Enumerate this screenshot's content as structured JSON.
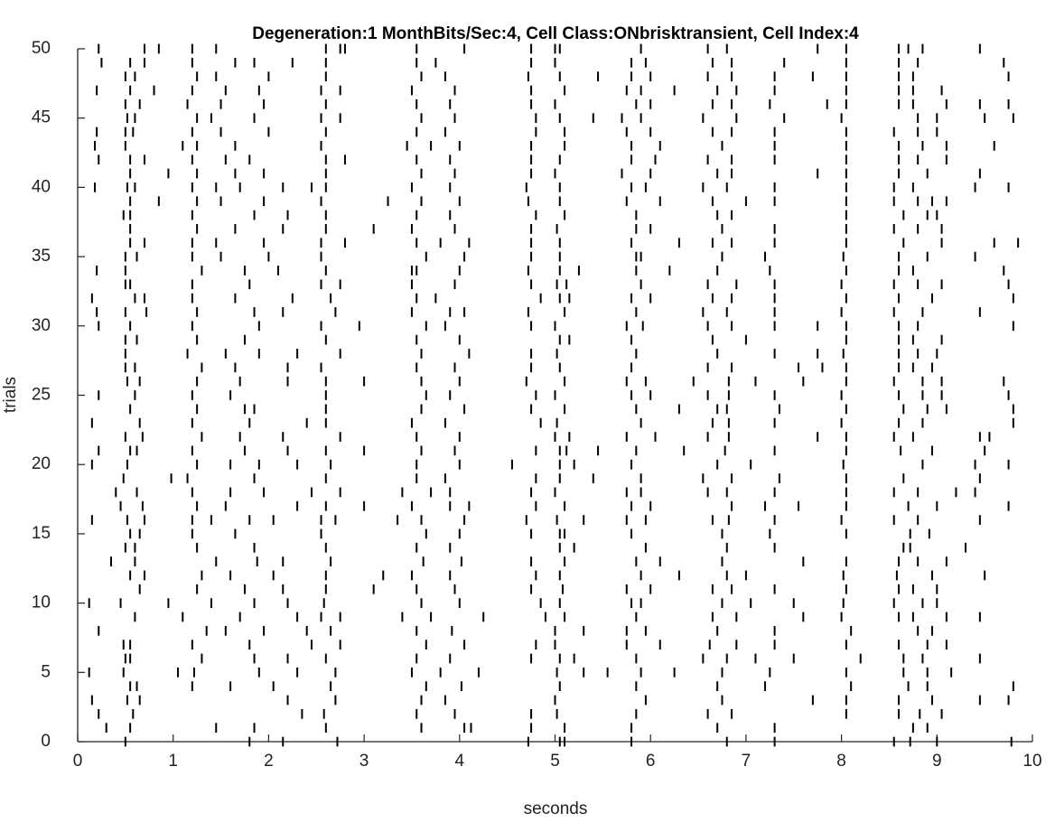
{
  "chart_data": {
    "type": "raster",
    "title": "Degeneration:1 MonthBits/Sec:4, Cell Class:ONbrisktransient, Cell Index:4",
    "xlabel": "seconds",
    "ylabel": "trials",
    "xlim": [
      0,
      10
    ],
    "ylim": [
      0,
      50
    ],
    "xticks": [
      0,
      1,
      2,
      3,
      4,
      5,
      6,
      7,
      8,
      9,
      10
    ],
    "yticks": [
      0,
      5,
      10,
      15,
      20,
      25,
      30,
      35,
      40,
      45,
      50
    ],
    "color": "#000000",
    "trials": [
      0,
      1,
      2,
      3,
      4,
      5,
      6,
      7,
      8,
      9,
      10,
      11,
      12,
      13,
      14,
      15,
      16,
      17,
      18,
      19,
      20,
      21,
      22,
      23,
      24,
      25,
      26,
      27,
      28,
      29,
      30,
      31,
      32,
      33,
      34,
      35,
      36,
      37,
      38,
      39,
      40,
      41,
      42,
      43,
      44,
      45,
      46,
      47,
      48,
      49,
      50
    ],
    "spikes": [
      [
        0.5,
        1.8,
        2.15,
        2.72,
        4.72,
        5.05,
        5.1,
        5.8,
        6.8,
        7.3,
        8.55,
        8.72,
        9.0,
        9.78
      ],
      [
        0.3,
        0.55,
        1.45,
        1.85,
        2.6,
        3.6,
        4.05,
        4.12,
        4.75,
        5.1,
        5.8,
        6.7,
        7.3,
        8.75,
        8.9
      ],
      [
        0.22,
        0.58,
        2.35,
        2.58,
        3.55,
        3.95,
        4.75,
        5.02,
        5.85,
        6.6,
        6.85,
        8.05,
        8.6,
        8.82,
        9.05
      ],
      [
        0.15,
        0.52,
        0.65,
        2.2,
        2.7,
        3.6,
        3.85,
        5.0,
        5.95,
        6.75,
        7.7,
        8.05,
        8.6,
        8.95,
        9.45,
        9.75
      ],
      [
        0.55,
        0.62,
        1.2,
        1.6,
        2.05,
        2.65,
        3.65,
        4.02,
        5.05,
        5.85,
        6.7,
        7.2,
        8.1,
        8.7,
        8.9,
        9.8
      ],
      [
        0.12,
        0.48,
        1.05,
        1.22,
        1.9,
        2.3,
        2.7,
        3.5,
        3.8,
        4.2,
        5.02,
        5.3,
        5.55,
        5.9,
        6.25,
        6.75,
        7.25,
        8.05,
        8.65,
        8.9,
        9.15
      ],
      [
        0.5,
        0.55,
        1.3,
        1.85,
        2.2,
        2.6,
        3.55,
        3.9,
        4.75,
        5.05,
        5.2,
        5.85,
        6.55,
        6.8,
        7.1,
        7.5,
        8.2,
        8.65,
        8.85,
        9.45
      ],
      [
        0.48,
        0.55,
        1.2,
        1.8,
        2.45,
        2.75,
        3.65,
        4.05,
        4.8,
        5.0,
        5.75,
        6.1,
        6.62,
        6.9,
        7.3,
        8.05,
        8.6,
        8.9,
        9.1
      ],
      [
        0.22,
        1.35,
        1.55,
        1.95,
        2.4,
        2.65,
        3.55,
        3.92,
        5.0,
        5.3,
        5.75,
        5.95,
        6.7,
        7.3,
        8.1,
        8.8,
        8.95
      ],
      [
        0.6,
        1.1,
        1.7,
        2.3,
        2.55,
        2.75,
        3.4,
        3.7,
        4.25,
        4.9,
        5.1,
        5.85,
        6.65,
        6.9,
        7.6,
        8.0,
        8.6,
        8.75,
        9.1,
        9.45
      ],
      [
        0.12,
        0.45,
        0.95,
        1.4,
        1.85,
        2.2,
        2.58,
        3.6,
        4.0,
        4.85,
        5.05,
        5.8,
        5.9,
        6.75,
        7.05,
        7.5,
        8.02,
        8.55,
        8.85,
        9.0
      ],
      [
        0.65,
        1.25,
        1.75,
        2.15,
        2.6,
        3.1,
        3.55,
        3.95,
        4.75,
        5.08,
        5.75,
        6.0,
        6.65,
        6.85,
        7.3,
        8.05,
        8.6,
        8.75,
        9.0
      ],
      [
        0.55,
        0.7,
        1.3,
        1.6,
        2.05,
        2.6,
        3.2,
        3.5,
        3.9,
        4.8,
        5.05,
        5.9,
        6.3,
        6.8,
        7.0,
        8.02,
        8.58,
        8.95,
        9.5
      ],
      [
        0.35,
        0.6,
        1.45,
        1.88,
        2.15,
        2.65,
        3.62,
        4.02,
        4.75,
        5.1,
        5.85,
        6.1,
        6.75,
        7.6,
        8.05,
        8.6,
        8.8,
        9.1
      ],
      [
        0.5,
        0.6,
        1.25,
        1.85,
        2.6,
        3.55,
        3.9,
        5.05,
        5.2,
        5.95,
        6.8,
        7.3,
        8.65,
        8.72,
        9.3
      ],
      [
        0.55,
        0.65,
        1.2,
        1.65,
        2.55,
        3.65,
        4.0,
        4.75,
        5.05,
        5.1,
        5.8,
        6.75,
        7.25,
        8.05,
        8.72,
        8.92
      ],
      [
        0.15,
        0.52,
        0.7,
        1.2,
        1.4,
        1.8,
        2.05,
        2.55,
        2.7,
        3.35,
        3.6,
        4.05,
        4.7,
        5.02,
        5.3,
        5.75,
        5.95,
        6.65,
        6.82,
        7.3,
        8.0,
        8.55,
        8.8,
        9.45
      ],
      [
        0.45,
        0.68,
        1.25,
        1.55,
        2.3,
        2.6,
        3.0,
        3.5,
        3.9,
        4.1,
        4.8,
        5.1,
        5.8,
        6.0,
        6.85,
        7.2,
        7.55,
        8.05,
        8.7,
        9.0,
        9.75
      ],
      [
        0.4,
        0.62,
        1.2,
        1.6,
        1.95,
        2.45,
        2.75,
        3.4,
        3.7,
        3.9,
        4.75,
        5.0,
        5.75,
        5.9,
        6.6,
        6.8,
        7.3,
        8.05,
        8.55,
        8.8,
        9.2,
        9.4
      ],
      [
        0.48,
        0.98,
        1.15,
        1.85,
        2.6,
        3.55,
        3.85,
        4.8,
        5.05,
        5.4,
        5.9,
        6.55,
        6.85,
        7.35,
        8.05,
        8.65,
        9.45
      ],
      [
        0.15,
        0.52,
        1.25,
        1.6,
        1.9,
        2.3,
        2.65,
        3.55,
        4.0,
        4.55,
        5.05,
        5.2,
        5.8,
        6.7,
        7.05,
        8.02,
        8.85,
        9.4,
        9.75
      ],
      [
        0.22,
        0.55,
        0.62,
        1.2,
        1.75,
        2.2,
        2.6,
        3.0,
        3.6,
        3.95,
        4.8,
        5.05,
        5.12,
        5.45,
        5.85,
        6.35,
        6.78,
        7.3,
        8.05,
        8.62,
        8.95,
        9.5
      ],
      [
        0.5,
        0.68,
        1.3,
        1.7,
        2.15,
        2.75,
        3.55,
        4.0,
        5.0,
        5.15,
        5.75,
        6.05,
        6.6,
        6.82,
        7.75,
        8.05,
        8.55,
        8.75,
        9.45,
        9.55
      ],
      [
        0.15,
        0.65,
        1.2,
        1.8,
        2.4,
        2.6,
        3.5,
        3.85,
        4.85,
        5.02,
        5.9,
        6.65,
        6.82,
        7.3,
        8.0,
        8.6,
        8.85,
        9.8
      ],
      [
        0.55,
        1.25,
        1.75,
        1.85,
        2.6,
        3.6,
        4.05,
        4.75,
        5.1,
        5.85,
        6.3,
        6.7,
        6.8,
        7.35,
        8.05,
        8.65,
        8.9,
        9.1,
        9.8
      ],
      [
        0.22,
        0.6,
        1.2,
        1.6,
        2.6,
        3.65,
        3.9,
        4.8,
        5.0,
        5.8,
        6.0,
        6.6,
        6.82,
        7.3,
        8.0,
        8.6,
        8.85,
        9.05,
        9.75
      ],
      [
        0.52,
        0.65,
        1.25,
        1.7,
        2.2,
        2.6,
        3.0,
        3.6,
        4.0,
        4.7,
        5.1,
        5.75,
        5.95,
        6.45,
        6.82,
        7.1,
        7.6,
        8.05,
        8.55,
        8.85,
        9.05,
        9.7
      ],
      [
        0.5,
        0.6,
        1.3,
        1.65,
        2.2,
        2.55,
        3.55,
        3.95,
        4.75,
        5.05,
        5.8,
        6.6,
        6.85,
        7.55,
        7.8,
        8.05,
        8.6,
        8.75,
        8.95
      ],
      [
        0.5,
        1.15,
        1.55,
        1.9,
        2.3,
        2.75,
        3.6,
        4.1,
        4.75,
        5.02,
        5.85,
        6.7,
        7.3,
        7.75,
        8.02,
        8.6,
        8.8,
        9.0
      ],
      [
        0.5,
        0.62,
        1.25,
        1.75,
        2.6,
        3.55,
        4.0,
        5.05,
        5.15,
        5.8,
        6.65,
        7.0,
        8.05,
        8.6,
        8.75,
        9.05
      ],
      [
        0.22,
        0.55,
        1.2,
        1.9,
        2.55,
        2.95,
        3.65,
        3.85,
        4.75,
        5.0,
        5.75,
        5.92,
        6.6,
        6.85,
        7.3,
        7.75,
        8.05,
        8.6,
        8.8,
        9.8
      ],
      [
        0.2,
        0.5,
        0.72,
        1.25,
        1.85,
        2.15,
        2.7,
        3.5,
        3.9,
        4.05,
        4.72,
        5.1,
        5.85,
        6.55,
        6.8,
        7.3,
        8.0,
        8.55,
        8.85,
        9.45
      ],
      [
        0.15,
        0.6,
        0.7,
        1.2,
        1.65,
        2.25,
        2.65,
        3.55,
        3.75,
        4.85,
        5.05,
        5.15,
        5.8,
        6.0,
        6.65,
        6.85,
        7.3,
        8.05,
        8.6,
        8.95,
        9.8
      ],
      [
        0.5,
        0.55,
        1.2,
        1.8,
        2.55,
        2.75,
        3.5,
        3.95,
        4.75,
        5.02,
        5.12,
        5.9,
        6.6,
        6.9,
        7.3,
        8.0,
        8.55,
        8.8,
        9.05,
        9.75
      ],
      [
        0.2,
        0.5,
        1.3,
        1.75,
        2.1,
        2.6,
        3.5,
        3.55,
        4.0,
        4.72,
        5.05,
        5.25,
        5.85,
        6.2,
        6.7,
        7.25,
        8.05,
        8.6,
        8.75,
        9.7
      ],
      [
        0.5,
        0.62,
        1.2,
        1.5,
        2.0,
        2.55,
        3.65,
        4.05,
        4.75,
        5.05,
        5.85,
        5.9,
        6.75,
        7.2,
        8.02,
        8.6,
        8.9,
        9.4
      ],
      [
        0.55,
        0.7,
        1.2,
        1.45,
        1.95,
        2.55,
        2.8,
        3.55,
        3.8,
        4.1,
        4.75,
        5.05,
        5.8,
        6.3,
        6.65,
        6.85,
        7.3,
        8.05,
        8.65,
        9.05,
        9.6,
        9.85
      ],
      [
        0.55,
        1.25,
        1.65,
        2.15,
        2.6,
        3.1,
        3.5,
        3.95,
        4.75,
        5.02,
        5.85,
        6.0,
        6.75,
        7.3,
        8.05,
        8.55,
        8.8,
        9.05
      ],
      [
        0.48,
        0.55,
        1.2,
        1.85,
        2.2,
        2.6,
        3.55,
        3.9,
        4.8,
        5.1,
        5.85,
        6.7,
        6.85,
        8.05,
        8.65,
        8.9,
        9.0
      ],
      [
        0.55,
        0.85,
        1.25,
        1.5,
        1.95,
        2.55,
        3.25,
        3.6,
        4.0,
        4.72,
        5.05,
        5.75,
        6.1,
        6.65,
        7.0,
        7.3,
        8.05,
        8.55,
        8.8,
        8.95,
        9.1
      ],
      [
        0.18,
        0.52,
        0.6,
        1.2,
        1.45,
        1.7,
        2.15,
        2.45,
        2.6,
        3.5,
        3.9,
        4.7,
        5.05,
        5.8,
        5.95,
        6.55,
        6.8,
        7.3,
        8.05,
        8.55,
        8.75,
        9.4,
        9.75
      ],
      [
        0.55,
        0.95,
        1.25,
        1.65,
        1.95,
        2.6,
        3.6,
        3.95,
        4.75,
        5.0,
        5.7,
        6.0,
        6.7,
        6.85,
        7.75,
        8.05,
        8.6,
        8.9,
        9.45
      ],
      [
        0.22,
        0.55,
        0.7,
        1.2,
        1.55,
        1.8,
        2.6,
        2.8,
        3.55,
        3.9,
        4.75,
        5.05,
        5.8,
        6.05,
        6.6,
        6.85,
        7.3,
        8.05,
        8.6,
        8.8,
        9.1
      ],
      [
        0.18,
        0.5,
        1.1,
        1.25,
        1.65,
        2.55,
        3.45,
        3.7,
        4.0,
        4.75,
        5.1,
        5.8,
        6.1,
        6.75,
        7.3,
        8.05,
        8.6,
        8.85,
        9.1,
        9.6
      ],
      [
        0.2,
        0.5,
        0.58,
        1.2,
        1.5,
        2.0,
        2.6,
        3.55,
        3.85,
        4.8,
        5.1,
        5.75,
        6.0,
        6.65,
        6.85,
        7.3,
        8.05,
        8.55,
        8.8,
        9.0
      ],
      [
        0.52,
        0.6,
        1.25,
        1.4,
        1.85,
        2.55,
        2.75,
        3.6,
        3.95,
        4.8,
        5.05,
        5.4,
        5.7,
        5.9,
        6.55,
        6.9,
        7.4,
        8.0,
        8.8,
        9.0,
        9.5,
        9.8
      ],
      [
        0.5,
        0.65,
        1.15,
        1.5,
        1.95,
        2.6,
        3.55,
        3.9,
        4.75,
        5.0,
        5.85,
        6.0,
        6.65,
        6.85,
        7.25,
        7.85,
        8.05,
        8.6,
        8.75,
        9.1,
        9.45,
        9.75
      ],
      [
        0.2,
        0.55,
        0.8,
        1.2,
        1.55,
        1.9,
        2.55,
        2.75,
        3.5,
        3.95,
        4.75,
        5.1,
        5.75,
        5.9,
        6.25,
        6.7,
        6.9,
        7.3,
        8.05,
        8.6,
        8.75,
        9.05
      ],
      [
        0.5,
        0.6,
        1.25,
        1.45,
        2.0,
        2.6,
        3.6,
        3.85,
        4.72,
        5.05,
        5.45,
        5.8,
        6.0,
        6.6,
        6.85,
        7.3,
        7.7,
        8.05,
        8.6,
        8.75,
        9.75
      ],
      [
        0.25,
        0.55,
        0.7,
        1.2,
        1.65,
        1.85,
        2.25,
        2.6,
        3.55,
        3.75,
        4.75,
        5.0,
        5.8,
        5.95,
        6.65,
        6.85,
        7.4,
        8.05,
        8.6,
        8.8,
        9.7
      ],
      [
        0.22,
        0.7,
        0.85,
        1.2,
        1.45,
        2.6,
        2.75,
        2.8,
        3.55,
        4.05,
        4.75,
        5.0,
        5.05,
        5.9,
        6.6,
        6.8,
        7.75,
        8.05,
        8.6,
        8.7,
        8.85,
        9.45
      ]
    ]
  }
}
